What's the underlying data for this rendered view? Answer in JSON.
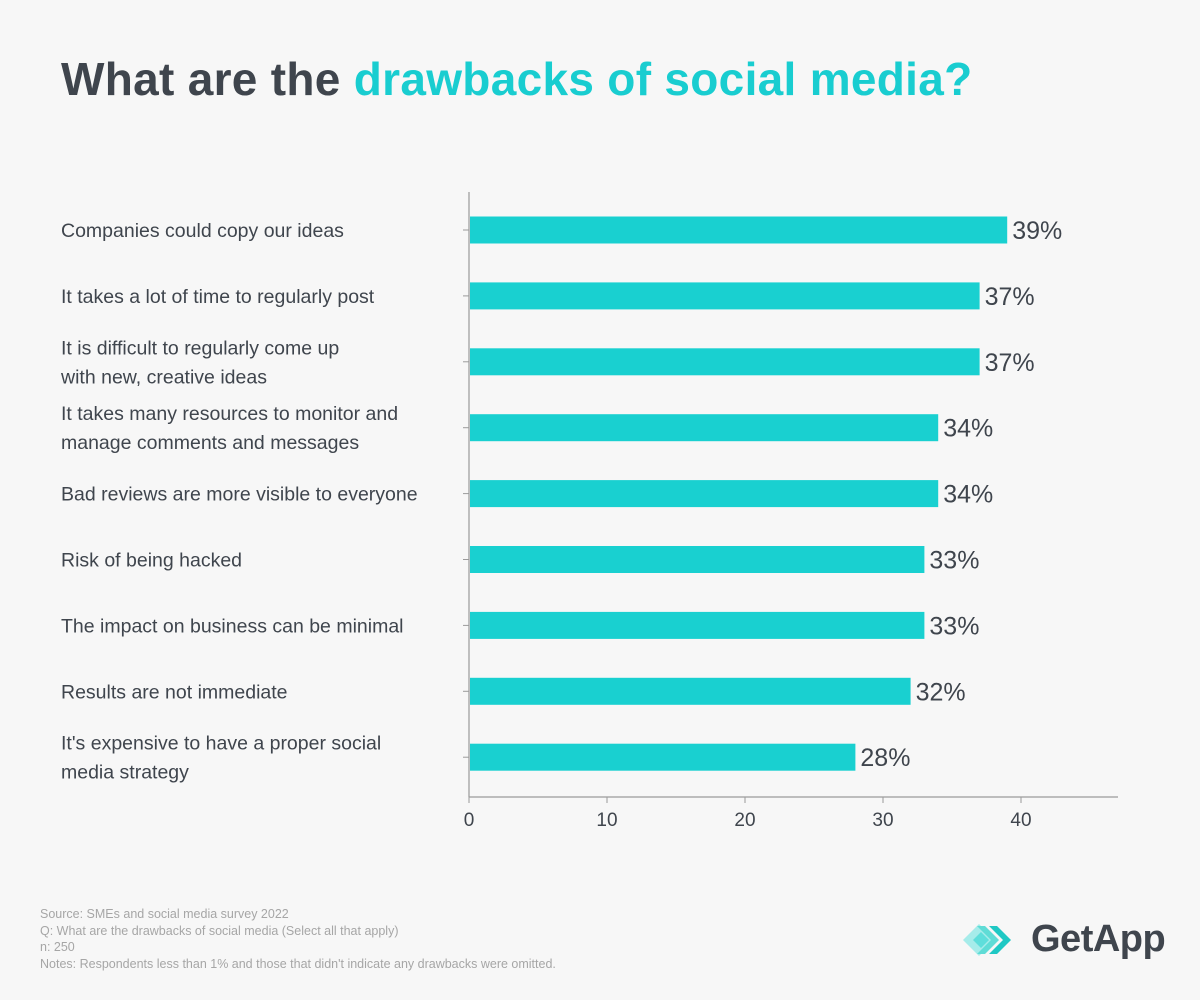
{
  "title": {
    "prefix": "What are the ",
    "highlight": "drawbacks of social media?"
  },
  "chart_data": {
    "type": "bar",
    "orientation": "horizontal",
    "categories": [
      [
        "Companies could copy our ideas"
      ],
      [
        "It takes a lot of time to regularly post"
      ],
      [
        "It is difficult to regularly come up",
        "with new, creative ideas"
      ],
      [
        "It takes many resources to monitor and",
        "manage comments and messages"
      ],
      [
        "Bad reviews are more visible to everyone"
      ],
      [
        "Risk of being hacked"
      ],
      [
        "The impact on business can be minimal"
      ],
      [
        "Results are not immediate"
      ],
      [
        "It's expensive to have a proper social",
        "media strategy"
      ]
    ],
    "values": [
      39,
      37,
      37,
      34,
      34,
      33,
      33,
      32,
      28
    ],
    "data_labels": [
      "39%",
      "37%",
      "37%",
      "34%",
      "34%",
      "33%",
      "33%",
      "32%",
      "28%"
    ],
    "xlim": [
      0,
      47
    ],
    "xticks": [
      0,
      10,
      20,
      30,
      40
    ],
    "xtick_labels": [
      "0",
      "10",
      "20",
      "30",
      "40"
    ],
    "bar_color": "#19d0d0",
    "grid": false
  },
  "footer": {
    "source": "Source: SMEs and social media survey 2022",
    "question": "Q: What are the drawbacks of social media (Select all that apply)",
    "n": "n: 250",
    "notes": "Notes: Respondents less than 1% and those that didn't indicate any drawbacks were omitted."
  },
  "logo": {
    "text": "GetApp"
  }
}
